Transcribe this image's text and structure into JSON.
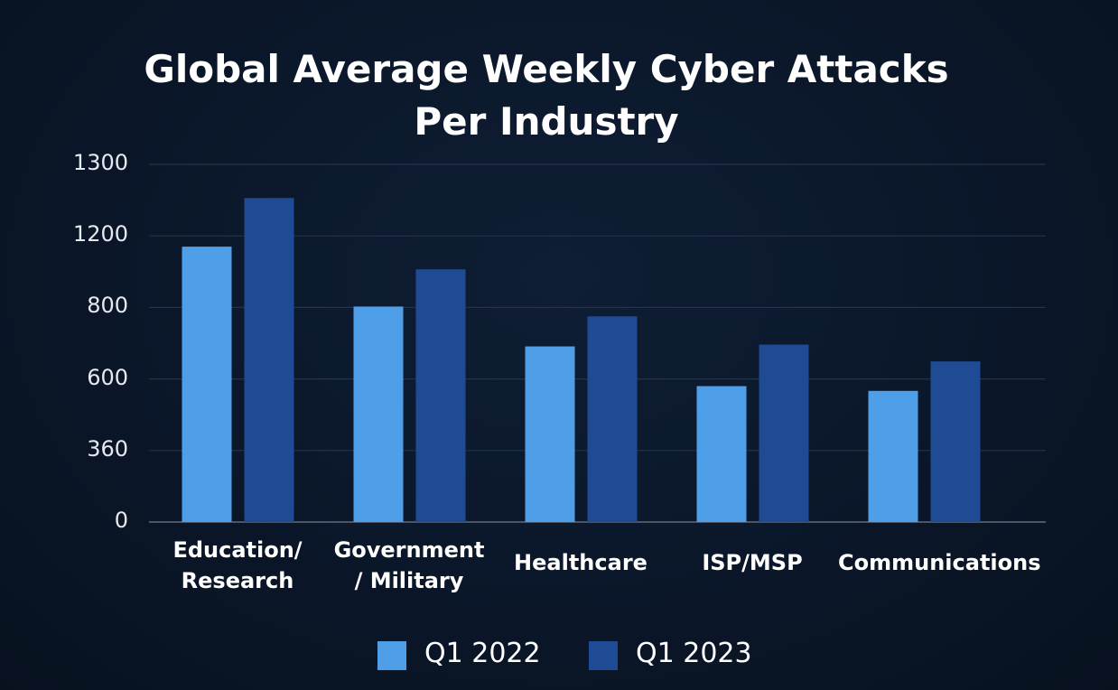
{
  "chart_data": {
    "type": "bar",
    "title": "Global Average Weekly Cyber Attacks\nPer Industry",
    "categories": [
      "Education/\nResearch",
      "Government\n/ Military",
      "Healthcare",
      "ISP/MSP",
      "Communications"
    ],
    "series": [
      {
        "name": "Q1 2022",
        "color": "#4f9fe8",
        "values": [
          1140,
          805,
          691,
          576,
          560
        ]
      },
      {
        "name": "Q1 2023",
        "color": "#1f4b94",
        "values": [
          1253,
          1013,
          775,
          696,
          649
        ]
      }
    ],
    "ylim": [
      0,
      1300
    ],
    "yticks": [
      0,
      360,
      600,
      800,
      1200,
      1300
    ],
    "grid": true,
    "legend": "bottom"
  }
}
